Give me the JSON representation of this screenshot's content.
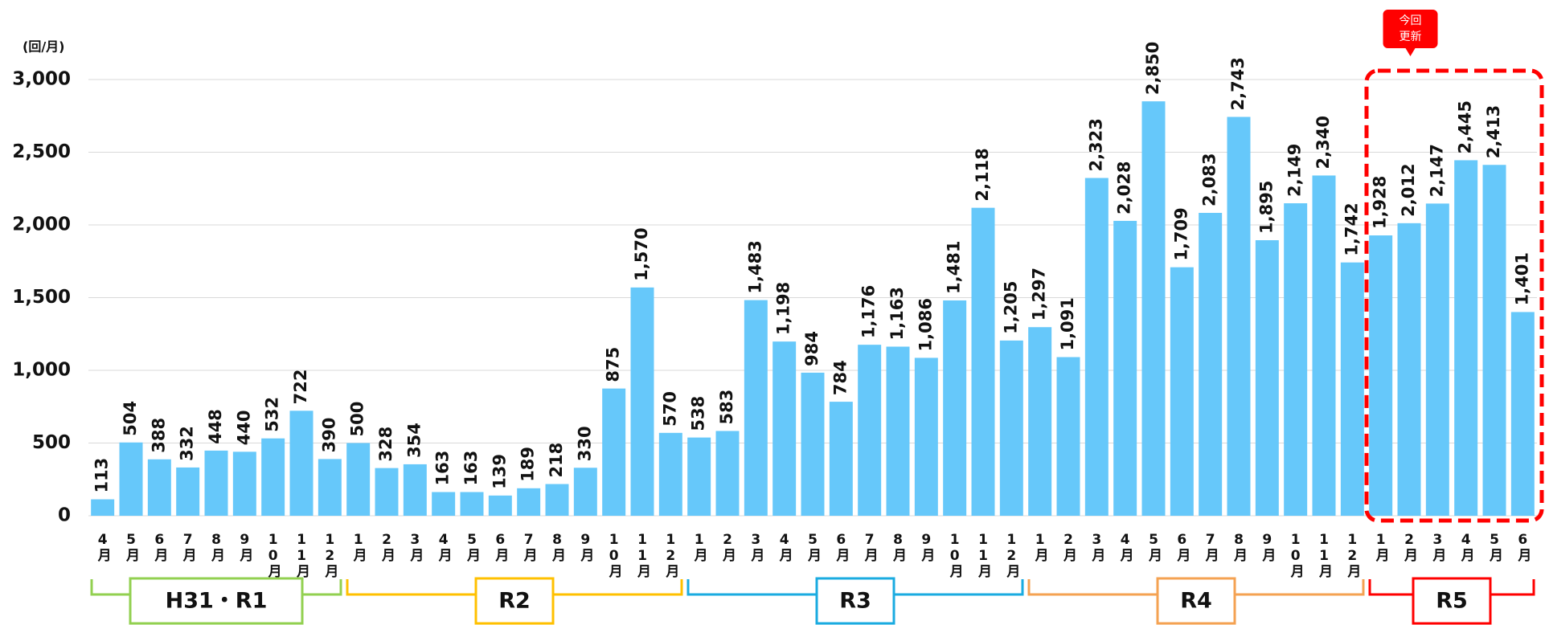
{
  "chart_data": {
    "type": "bar",
    "y_unit_label": "(回/月)",
    "callout": [
      "今回",
      "更新"
    ],
    "color": "#66c8fa",
    "categories": [
      "4月",
      "5月",
      "6月",
      "7月",
      "8月",
      "9月",
      "10月",
      "11月",
      "12月",
      "1月",
      "2月",
      "3月",
      "4月",
      "5月",
      "6月",
      "7月",
      "8月",
      "9月",
      "10月",
      "11月",
      "12月",
      "1月",
      "2月",
      "3月",
      "4月",
      "5月",
      "6月",
      "7月",
      "8月",
      "9月",
      "10月",
      "11月",
      "12月",
      "1月",
      "2月",
      "3月",
      "4月",
      "5月",
      "6月",
      "7月",
      "8月",
      "9月",
      "10月",
      "11月",
      "12月",
      "1月",
      "2月",
      "3月",
      "4月",
      "5月",
      "6月"
    ],
    "values": [
      113,
      504,
      388,
      332,
      448,
      440,
      532,
      722,
      390,
      500,
      328,
      354,
      163,
      163,
      139,
      189,
      218,
      330,
      875,
      1570,
      570,
      538,
      583,
      1483,
      1198,
      984,
      784,
      1176,
      1163,
      1086,
      1481,
      2118,
      1205,
      1297,
      1091,
      2323,
      2028,
      2850,
      1709,
      2083,
      2743,
      1895,
      2149,
      2340,
      1742,
      1928,
      2012,
      2147,
      2445,
      2413,
      1401
    ],
    "value_labels": [
      "113",
      "504",
      "388",
      "332",
      "448",
      "440",
      "532",
      "722",
      "390",
      "500",
      "328",
      "354",
      "163",
      "163",
      "139",
      "189",
      "218",
      "330",
      "875",
      "1,570",
      "570",
      "538",
      "583",
      "1,483",
      "1,198",
      "984",
      "784",
      "1,176",
      "1,163",
      "1,086",
      "1,481",
      "2,118",
      "1,205",
      "1,297",
      "1,091",
      "2,323",
      "2,028",
      "2,850",
      "1,709",
      "2,083",
      "2,743",
      "1,895",
      "2,149",
      "2,340",
      "1,742",
      "1,928",
      "2,012",
      "2,147",
      "2,445",
      "2,413",
      "1,401"
    ],
    "groups": [
      {
        "label": "H31・R1",
        "color": "#92d050"
      },
      {
        "label": "R2",
        "color": "#ffc000"
      },
      {
        "label": "R3",
        "color": "#1aabe0"
      },
      {
        "label": "R4",
        "color": "#f4a252"
      },
      {
        "label": "R5",
        "color": "#ff0000"
      }
    ],
    "ylim": [
      0,
      3000
    ],
    "yticks": [
      0,
      500,
      {
        "value": 1000,
        "label": "1,000"
      },
      {
        "value": 1500,
        "label": "1,500"
      },
      {
        "value": 2000,
        "label": "2,000"
      },
      {
        "value": 2500,
        "label": "2,500"
      },
      {
        "value": 3000,
        "label": "3,000"
      }
    ],
    "grid": true
  }
}
